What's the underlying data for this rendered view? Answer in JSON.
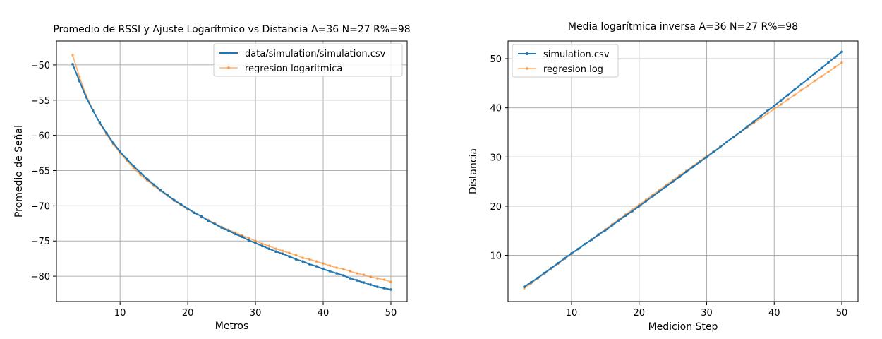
{
  "chart_data": [
    {
      "type": "line",
      "title": "Promedio de RSSI y Ajuste Logarítmico vs Distancia  A=36 N=27 R%=98",
      "xlabel": "Metros",
      "ylabel": "Promedio de Señal",
      "xlim": [
        0.6,
        52.4
      ],
      "ylim": [
        -83.6,
        -46.6
      ],
      "xticks": [
        10,
        20,
        30,
        40,
        50
      ],
      "yticks": [
        -80,
        -75,
        -70,
        -65,
        -60,
        -55,
        -50
      ],
      "ytick_labels": [
        "−80",
        "−75",
        "−70",
        "−65",
        "−60",
        "−55",
        "−50"
      ],
      "grid": true,
      "legend_position": "upper right",
      "x": [
        3,
        4,
        5,
        6,
        7,
        8,
        9,
        10,
        11,
        12,
        13,
        14,
        15,
        16,
        17,
        18,
        19,
        20,
        21,
        22,
        23,
        24,
        25,
        26,
        27,
        28,
        29,
        30,
        31,
        32,
        33,
        34,
        35,
        36,
        37,
        38,
        39,
        40,
        41,
        42,
        43,
        44,
        45,
        46,
        47,
        48,
        49,
        50
      ],
      "series": [
        {
          "name": "data/simulation/simulation.csv",
          "color": "#1f77b4",
          "values": [
            -49.9,
            -52.3,
            -54.6,
            -56.5,
            -58.2,
            -59.7,
            -61.1,
            -62.3,
            -63.4,
            -64.4,
            -65.3,
            -66.2,
            -67.0,
            -67.8,
            -68.5,
            -69.2,
            -69.8,
            -70.4,
            -71.0,
            -71.5,
            -72.1,
            -72.6,
            -73.1,
            -73.5,
            -74.0,
            -74.4,
            -74.9,
            -75.3,
            -75.7,
            -76.1,
            -76.5,
            -76.8,
            -77.2,
            -77.6,
            -77.9,
            -78.3,
            -78.6,
            -79.0,
            -79.3,
            -79.6,
            -79.9,
            -80.3,
            -80.6,
            -80.9,
            -81.2,
            -81.5,
            -81.7,
            -81.9
          ]
        },
        {
          "name": "regresion logaritmica",
          "color": "#ff7f0e",
          "values": [
            -48.6,
            -51.7,
            -54.3,
            -56.4,
            -58.3,
            -59.9,
            -61.3,
            -62.5,
            -63.6,
            -64.7,
            -65.6,
            -66.4,
            -67.2,
            -67.9,
            -68.6,
            -69.3,
            -69.9,
            -70.5,
            -71.0,
            -71.5,
            -72.0,
            -72.5,
            -73.0,
            -73.4,
            -73.8,
            -74.2,
            -74.6,
            -75.0,
            -75.4,
            -75.7,
            -76.1,
            -76.4,
            -76.7,
            -77.0,
            -77.4,
            -77.6,
            -77.9,
            -78.2,
            -78.5,
            -78.8,
            -79.0,
            -79.3,
            -79.6,
            -79.8,
            -80.1,
            -80.3,
            -80.5,
            -80.8
          ]
        }
      ]
    },
    {
      "type": "line",
      "title": "Media logarítmica inversa A=36 N=27 R%=98",
      "xlabel": "Medicion Step",
      "ylabel": "Distancia",
      "xlim": [
        0.6,
        52.4
      ],
      "ylim": [
        0.6,
        53.6
      ],
      "xticks": [
        10,
        20,
        30,
        40,
        50
      ],
      "yticks": [
        10,
        20,
        30,
        40,
        50
      ],
      "grid": true,
      "legend_position": "upper left",
      "x": [
        3,
        4,
        5,
        6,
        7,
        8,
        9,
        10,
        11,
        12,
        13,
        14,
        15,
        16,
        17,
        18,
        19,
        20,
        21,
        22,
        23,
        24,
        25,
        26,
        27,
        28,
        29,
        30,
        31,
        32,
        33,
        34,
        35,
        36,
        37,
        38,
        39,
        40,
        41,
        42,
        43,
        44,
        45,
        46,
        47,
        48,
        49,
        50
      ],
      "series": [
        {
          "name": "simulation.csv",
          "color": "#1f77b4",
          "values": [
            3.6,
            4.5,
            5.4,
            6.4,
            7.4,
            8.4,
            9.4,
            10.4,
            11.3,
            12.3,
            13.2,
            14.2,
            15.1,
            16.1,
            17.1,
            18.1,
            19.0,
            20.0,
            21.0,
            22.0,
            23.0,
            24.0,
            25.0,
            26.0,
            27.0,
            28.0,
            29.0,
            30.0,
            31.0,
            32.0,
            33.1,
            34.1,
            35.1,
            36.2,
            37.2,
            38.3,
            39.4,
            40.4,
            41.5,
            42.6,
            43.7,
            44.8,
            45.9,
            47.0,
            48.1,
            49.2,
            50.3,
            51.4
          ]
        },
        {
          "name": "regresion log",
          "color": "#ff7f0e",
          "values": [
            3.3,
            4.3,
            5.3,
            6.3,
            7.3,
            8.3,
            9.3,
            10.3,
            11.3,
            12.3,
            13.3,
            14.3,
            15.3,
            16.3,
            17.3,
            18.3,
            19.3,
            20.3,
            21.3,
            22.3,
            23.3,
            24.3,
            25.3,
            26.3,
            27.2,
            28.2,
            29.2,
            30.2,
            31.1,
            32.1,
            33.1,
            34.0,
            35.0,
            36.0,
            36.9,
            37.9,
            38.8,
            39.8,
            40.7,
            41.7,
            42.6,
            43.6,
            44.5,
            45.5,
            46.4,
            47.3,
            48.3,
            49.2
          ]
        }
      ]
    }
  ]
}
